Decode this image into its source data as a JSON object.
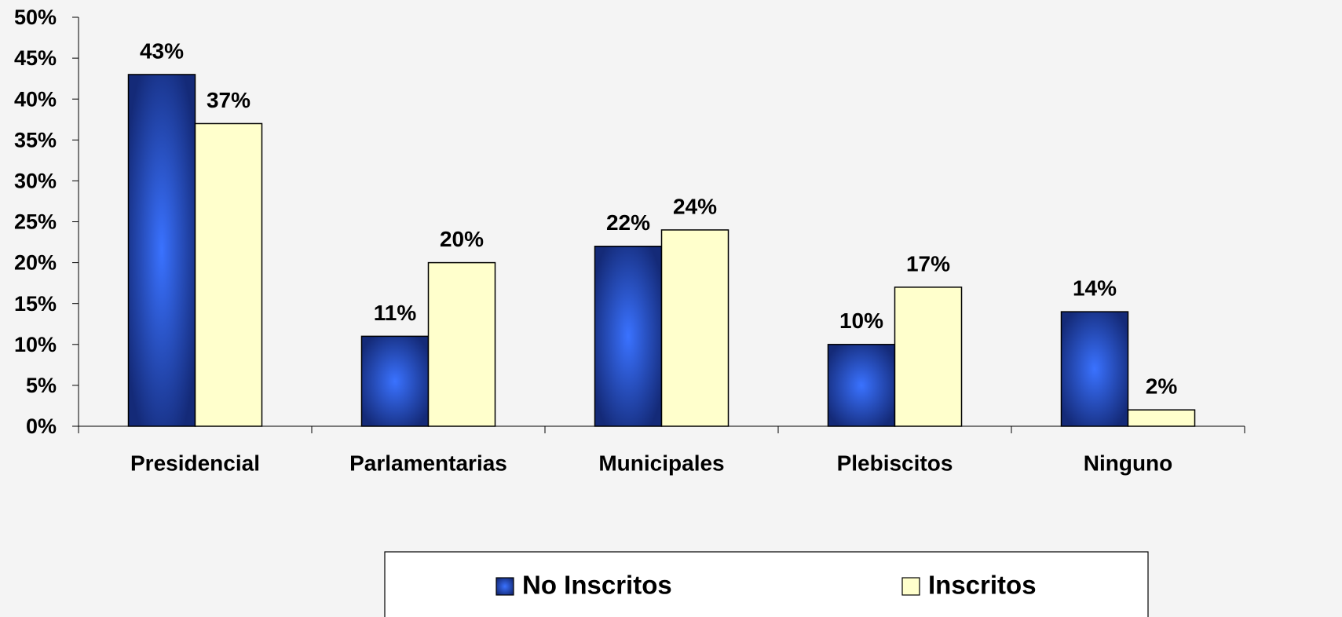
{
  "chart_data": {
    "type": "bar",
    "categories": [
      "Presidencial",
      "Parlamentarias",
      "Municipales",
      "Plebiscitos",
      "Ninguno"
    ],
    "series": [
      {
        "name": "No Inscritos",
        "color": "#2f62f0",
        "values": [
          43,
          11,
          22,
          10,
          14
        ],
        "value_labels": [
          "43%",
          "11%",
          "22%",
          "10%",
          "14%"
        ]
      },
      {
        "name": "Inscritos",
        "color": "#ffffcc",
        "values": [
          37,
          20,
          24,
          17,
          2
        ],
        "value_labels": [
          "37%",
          "20%",
          "24%",
          "17%",
          "2%"
        ]
      }
    ],
    "ylim": [
      0,
      50
    ],
    "yticks": [
      {
        "value": 0,
        "label": "0%"
      },
      {
        "value": 5,
        "label": "5%"
      },
      {
        "value": 10,
        "label": "10%"
      },
      {
        "value": 15,
        "label": "15%"
      },
      {
        "value": 20,
        "label": "20%"
      },
      {
        "value": 25,
        "label": "25%"
      },
      {
        "value": 30,
        "label": "30%"
      },
      {
        "value": 35,
        "label": "35%"
      },
      {
        "value": 40,
        "label": "40%"
      },
      {
        "value": 45,
        "label": "45%"
      },
      {
        "value": 50,
        "label": "50%"
      }
    ],
    "legend": "bottom"
  }
}
